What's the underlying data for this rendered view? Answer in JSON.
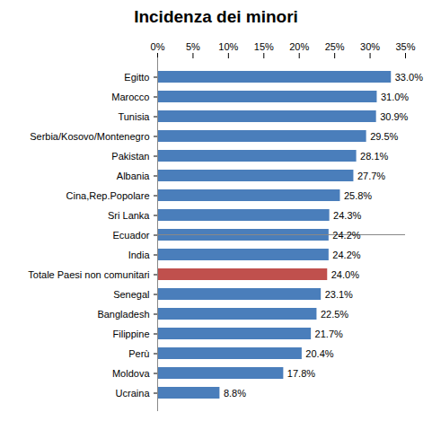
{
  "chart_data": {
    "type": "bar",
    "title": "Incidenza dei minori",
    "orientation": "horizontal",
    "categories": [
      "Egitto",
      "Marocco",
      "Tunisia",
      "Serbia/Kosovo/Montenegro",
      "Pakistan",
      "Albania",
      "Cina,Rep.Popolare",
      "Sri Lanka",
      "Ecuador",
      "India",
      "Totale Paesi non comunitari",
      "Senegal",
      "Bangladesh",
      "Filippine",
      "Perù",
      "Moldova",
      "Ucraina"
    ],
    "values": [
      33.0,
      31.0,
      30.9,
      29.5,
      28.1,
      27.7,
      25.8,
      24.3,
      24.2,
      24.2,
      24.0,
      23.1,
      22.5,
      21.7,
      20.4,
      17.8,
      8.8
    ],
    "value_labels": [
      "33.0%",
      "31.0%",
      "30.9%",
      "29.5%",
      "28.1%",
      "27.7%",
      "25.8%",
      "24.3%",
      "24.2%",
      "24.2%",
      "24.0%",
      "23.1%",
      "22.5%",
      "21.7%",
      "20.4%",
      "17.8%",
      "8.8%"
    ],
    "colors": [
      "#4a7ebb",
      "#4a7ebb",
      "#4a7ebb",
      "#4a7ebb",
      "#4a7ebb",
      "#4a7ebb",
      "#4a7ebb",
      "#4a7ebb",
      "#4a7ebb",
      "#4a7ebb",
      "#c0504d",
      "#4a7ebb",
      "#4a7ebb",
      "#4a7ebb",
      "#4a7ebb",
      "#4a7ebb",
      "#4a7ebb"
    ],
    "data_labels": true,
    "grid": false,
    "xlim": [
      0,
      35
    ],
    "xticks": [
      {
        "value": 0,
        "label": "0%"
      },
      {
        "value": 5,
        "label": "5%"
      },
      {
        "value": 10,
        "label": "10%"
      },
      {
        "value": 15,
        "label": "15%"
      },
      {
        "value": 20,
        "label": "20%"
      },
      {
        "value": 25,
        "label": "25%"
      },
      {
        "value": 30,
        "label": "30%"
      },
      {
        "value": 35,
        "label": "35%"
      }
    ]
  }
}
